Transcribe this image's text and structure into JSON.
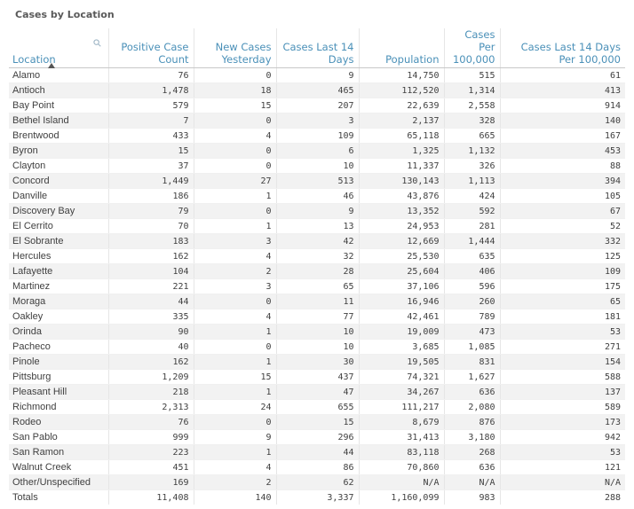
{
  "title": "Cases by Location",
  "columns": [
    {
      "key": "location",
      "label": "Location"
    },
    {
      "key": "positive",
      "label": "Positive Case Count"
    },
    {
      "key": "new",
      "label": "New Cases Yesterday"
    },
    {
      "key": "last14",
      "label": "Cases Last 14 Days"
    },
    {
      "key": "population",
      "label": "Population"
    },
    {
      "key": "per100k",
      "label": "Cases Per 100,000"
    },
    {
      "key": "last14per100k",
      "label": "Cases Last 14 Days Per 100,000"
    }
  ],
  "rows": [
    [
      "Alamo",
      "76",
      "0",
      "9",
      "14,750",
      "515",
      "61"
    ],
    [
      "Antioch",
      "1,478",
      "18",
      "465",
      "112,520",
      "1,314",
      "413"
    ],
    [
      "Bay Point",
      "579",
      "15",
      "207",
      "22,639",
      "2,558",
      "914"
    ],
    [
      "Bethel Island",
      "7",
      "0",
      "3",
      "2,137",
      "328",
      "140"
    ],
    [
      "Brentwood",
      "433",
      "4",
      "109",
      "65,118",
      "665",
      "167"
    ],
    [
      "Byron",
      "15",
      "0",
      "6",
      "1,325",
      "1,132",
      "453"
    ],
    [
      "Clayton",
      "37",
      "0",
      "10",
      "11,337",
      "326",
      "88"
    ],
    [
      "Concord",
      "1,449",
      "27",
      "513",
      "130,143",
      "1,113",
      "394"
    ],
    [
      "Danville",
      "186",
      "1",
      "46",
      "43,876",
      "424",
      "105"
    ],
    [
      "Discovery Bay",
      "79",
      "0",
      "9",
      "13,352",
      "592",
      "67"
    ],
    [
      "El Cerrito",
      "70",
      "1",
      "13",
      "24,953",
      "281",
      "52"
    ],
    [
      "El Sobrante",
      "183",
      "3",
      "42",
      "12,669",
      "1,444",
      "332"
    ],
    [
      "Hercules",
      "162",
      "4",
      "32",
      "25,530",
      "635",
      "125"
    ],
    [
      "Lafayette",
      "104",
      "2",
      "28",
      "25,604",
      "406",
      "109"
    ],
    [
      "Martinez",
      "221",
      "3",
      "65",
      "37,106",
      "596",
      "175"
    ],
    [
      "Moraga",
      "44",
      "0",
      "11",
      "16,946",
      "260",
      "65"
    ],
    [
      "Oakley",
      "335",
      "4",
      "77",
      "42,461",
      "789",
      "181"
    ],
    [
      "Orinda",
      "90",
      "1",
      "10",
      "19,009",
      "473",
      "53"
    ],
    [
      "Pacheco",
      "40",
      "0",
      "10",
      "3,685",
      "1,085",
      "271"
    ],
    [
      "Pinole",
      "162",
      "1",
      "30",
      "19,505",
      "831",
      "154"
    ],
    [
      "Pittsburg",
      "1,209",
      "15",
      "437",
      "74,321",
      "1,627",
      "588"
    ],
    [
      "Pleasant Hill",
      "218",
      "1",
      "47",
      "34,267",
      "636",
      "137"
    ],
    [
      "Richmond",
      "2,313",
      "24",
      "655",
      "111,217",
      "2,080",
      "589"
    ],
    [
      "Rodeo",
      "76",
      "0",
      "15",
      "8,679",
      "876",
      "173"
    ],
    [
      "San Pablo",
      "999",
      "9",
      "296",
      "31,413",
      "3,180",
      "942"
    ],
    [
      "San Ramon",
      "223",
      "1",
      "44",
      "83,118",
      "268",
      "53"
    ],
    [
      "Walnut Creek",
      "451",
      "4",
      "86",
      "70,860",
      "636",
      "121"
    ],
    [
      "Other/Unspecified",
      "169",
      "2",
      "62",
      "N/A",
      "N/A",
      "N/A"
    ],
    [
      "Totals",
      "11,408",
      "140",
      "3,337",
      "1,160,099",
      "983",
      "288"
    ]
  ]
}
